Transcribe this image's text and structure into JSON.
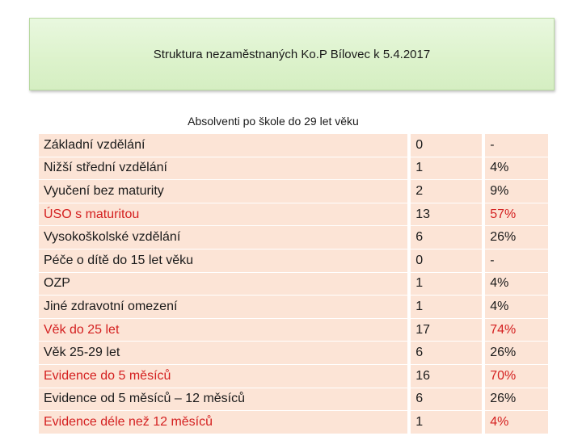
{
  "title": "Struktura nezaměstnaných Ko.P Bílovec k 5.4.2017",
  "subtitle": "Absolventi po škole do 29 let věku",
  "rows": [
    {
      "label": "Základní vzdělání",
      "count": "0",
      "percent": "-"
    },
    {
      "label": "Nižší střední vzdělání",
      "count": "1",
      "percent": "4%"
    },
    {
      "label": "Vyučení bez maturity",
      "count": "2",
      "percent": "9%"
    },
    {
      "label": "ÚSO s maturitou",
      "count": "13",
      "percent": "57%"
    },
    {
      "label": "Vysokoškolské vzdělání",
      "count": "6",
      "percent": "26%"
    },
    {
      "label": "Péče o dítě do 15 let věku",
      "count": "0",
      "percent": "-"
    },
    {
      "label": "OZP",
      "count": "1",
      "percent": "4%"
    },
    {
      "label": "Jiné zdravotní omezení",
      "count": "1",
      "percent": "4%"
    },
    {
      "label": "Věk do 25 let",
      "count": "17",
      "percent": "74%"
    },
    {
      "label": "Věk 25-29 let",
      "count": "6",
      "percent": "26%"
    },
    {
      "label": "Evidence do 5 měsíců",
      "count": "16",
      "percent": "70%"
    },
    {
      "label": "Evidence od 5 měsíců – 12 měsíců",
      "count": "6",
      "percent": "26%"
    },
    {
      "label": "Evidence déle než 12 měsíců",
      "count": "1",
      "percent": "4%"
    }
  ],
  "colors": {
    "highlight": "#d42020",
    "row_bg": "#fce4d6",
    "title_bg": "#dcf2cb"
  }
}
